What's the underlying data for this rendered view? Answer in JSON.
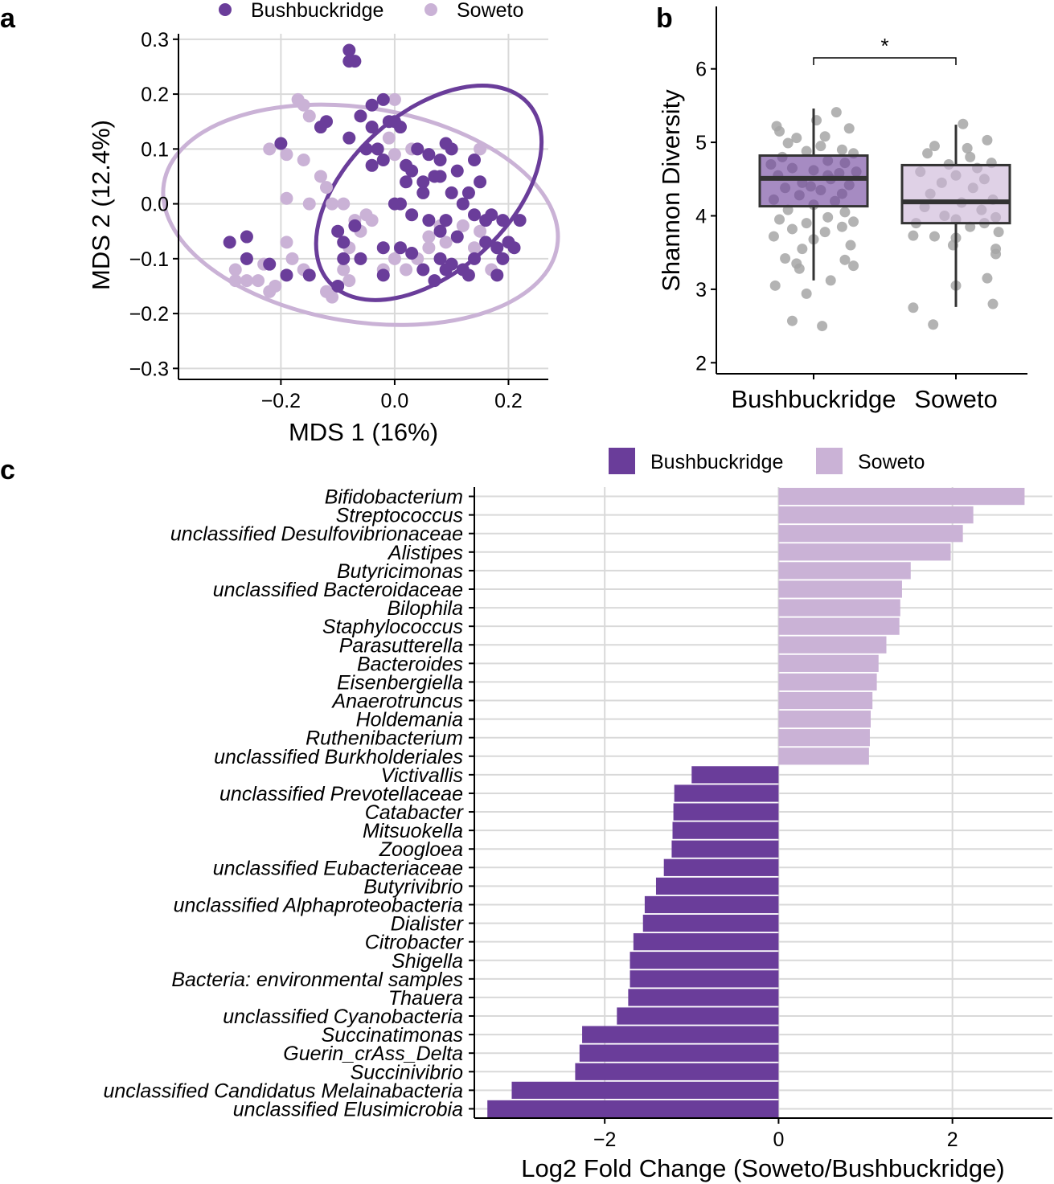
{
  "panels": {
    "a": {
      "letter": "a"
    },
    "b": {
      "letter": "b"
    },
    "c": {
      "letter": "c"
    }
  },
  "colors": {
    "bushbuckridge": "#6a3d9a",
    "soweto": "#cab2d6",
    "grid": "#d9d9d9",
    "jitter": "#a6a6a6",
    "axis": "#000000"
  },
  "chart_data": [
    {
      "id": "a",
      "type": "scatter",
      "title": "",
      "xlabel": "MDS 1 (16%)",
      "ylabel": "MDS 2 (12.4%)",
      "xlim": [
        -0.38,
        0.27
      ],
      "ylim": [
        -0.32,
        0.31
      ],
      "xticks": [
        -0.2,
        0.0,
        0.2
      ],
      "xtick_labels": [
        "−0.2",
        "0.0",
        "0.2"
      ],
      "yticks": [
        -0.3,
        -0.2,
        -0.1,
        0.0,
        0.1,
        0.2,
        0.3
      ],
      "ytick_labels": [
        "−0.3",
        "−0.2",
        "−0.1",
        "0.0",
        "0.1",
        "0.2",
        "0.3"
      ],
      "grid": true,
      "legend": {
        "placement": "top",
        "entries": [
          "Bushbuckridge",
          "Soweto"
        ]
      },
      "ellipses": [
        {
          "series": "Soweto",
          "cx": -0.06,
          "cy": -0.02,
          "rx": 0.35,
          "ry": 0.195,
          "angle_deg": 9
        },
        {
          "series": "Bushbuckridge",
          "cx": 0.06,
          "cy": 0.02,
          "rx": 0.235,
          "ry": 0.145,
          "angle_deg": -42
        }
      ],
      "series": [
        {
          "name": "Soweto",
          "points": [
            [
              -0.17,
              0.19
            ],
            [
              -0.16,
              0.18
            ],
            [
              -0.15,
              0.16
            ],
            [
              -0.13,
              0.05
            ],
            [
              -0.12,
              0.03
            ],
            [
              -0.19,
              0.09
            ],
            [
              -0.22,
              0.1
            ],
            [
              -0.16,
              0.08
            ],
            [
              -0.19,
              0.01
            ],
            [
              -0.15,
              0.0
            ],
            [
              -0.11,
              0.0
            ],
            [
              -0.09,
              0.0
            ],
            [
              -0.07,
              -0.03
            ],
            [
              -0.04,
              -0.03
            ],
            [
              -0.06,
              -0.05
            ],
            [
              -0.08,
              -0.08
            ],
            [
              -0.19,
              -0.07
            ],
            [
              -0.18,
              -0.1
            ],
            [
              -0.23,
              -0.11
            ],
            [
              -0.28,
              -0.12
            ],
            [
              -0.26,
              -0.14
            ],
            [
              -0.28,
              -0.14
            ],
            [
              -0.24,
              -0.14
            ],
            [
              -0.22,
              -0.16
            ],
            [
              -0.21,
              -0.15
            ],
            [
              -0.12,
              -0.16
            ],
            [
              -0.11,
              -0.17
            ],
            [
              -0.08,
              -0.14
            ],
            [
              -0.09,
              -0.12
            ],
            [
              -0.02,
              -0.12
            ],
            [
              0.0,
              -0.1
            ],
            [
              0.02,
              -0.12
            ],
            [
              0.04,
              -0.1
            ],
            [
              0.06,
              -0.06
            ],
            [
              0.09,
              -0.07
            ],
            [
              0.12,
              -0.04
            ],
            [
              0.14,
              -0.08
            ],
            [
              0.15,
              -0.05
            ],
            [
              0.17,
              -0.12
            ],
            [
              0.03,
              0.1
            ],
            [
              0.0,
              0.19
            ],
            [
              -0.01,
              0.12
            ],
            [
              0.06,
              -0.08
            ],
            [
              0.0,
              0.09
            ],
            [
              -0.05,
              -0.02
            ],
            [
              0.15,
              0.1
            ],
            [
              -0.16,
              -0.12
            ],
            [
              0.08,
              -0.04
            ]
          ]
        },
        {
          "name": "Bushbuckridge",
          "points": [
            [
              -0.08,
              0.28
            ],
            [
              -0.07,
              0.26
            ],
            [
              -0.08,
              0.26
            ],
            [
              -0.04,
              0.18
            ],
            [
              -0.02,
              0.19
            ],
            [
              -0.01,
              0.15
            ],
            [
              0.0,
              0.15
            ],
            [
              0.01,
              0.14
            ],
            [
              -0.04,
              0.14
            ],
            [
              -0.06,
              0.16
            ],
            [
              -0.12,
              0.15
            ],
            [
              -0.13,
              0.14
            ],
            [
              -0.2,
              0.11
            ],
            [
              -0.08,
              0.12
            ],
            [
              -0.05,
              0.1
            ],
            [
              -0.03,
              0.1
            ],
            [
              -0.02,
              0.08
            ],
            [
              -0.04,
              0.07
            ],
            [
              0.04,
              0.1
            ],
            [
              0.06,
              0.09
            ],
            [
              0.08,
              0.08
            ],
            [
              0.09,
              0.11
            ],
            [
              0.1,
              0.1
            ],
            [
              0.11,
              0.06
            ],
            [
              0.07,
              0.05
            ],
            [
              0.05,
              0.04
            ],
            [
              0.03,
              0.06
            ],
            [
              0.02,
              0.04
            ],
            [
              0.05,
              0.02
            ],
            [
              0.08,
              0.05
            ],
            [
              0.14,
              0.08
            ],
            [
              0.15,
              0.04
            ],
            [
              0.13,
              0.02
            ],
            [
              0.12,
              0.0
            ],
            [
              0.01,
              0.0
            ],
            [
              0.03,
              -0.02
            ],
            [
              0.06,
              -0.03
            ],
            [
              0.08,
              -0.05
            ],
            [
              0.09,
              -0.03
            ],
            [
              0.11,
              -0.06
            ],
            [
              0.14,
              -0.02
            ],
            [
              0.16,
              -0.03
            ],
            [
              0.17,
              -0.02
            ],
            [
              0.19,
              -0.03
            ],
            [
              0.22,
              -0.03
            ],
            [
              0.2,
              -0.07
            ],
            [
              0.21,
              -0.08
            ],
            [
              0.18,
              -0.08
            ],
            [
              0.16,
              -0.07
            ],
            [
              0.14,
              -0.1
            ],
            [
              0.12,
              -0.12
            ],
            [
              0.1,
              -0.11
            ],
            [
              0.08,
              -0.1
            ],
            [
              0.05,
              -0.12
            ],
            [
              0.03,
              -0.09
            ],
            [
              0.01,
              -0.08
            ],
            [
              -0.02,
              -0.08
            ],
            [
              -0.1,
              -0.05
            ],
            [
              -0.07,
              -0.04
            ],
            [
              -0.09,
              -0.07
            ],
            [
              -0.09,
              -0.1
            ],
            [
              -0.06,
              -0.1
            ],
            [
              -0.02,
              -0.13
            ],
            [
              -0.1,
              -0.15
            ],
            [
              -0.22,
              -0.11
            ],
            [
              -0.19,
              -0.13
            ],
            [
              -0.15,
              -0.13
            ],
            [
              -0.26,
              -0.1
            ],
            [
              -0.29,
              -0.07
            ],
            [
              -0.26,
              -0.06
            ],
            [
              0.18,
              -0.13
            ],
            [
              0.19,
              -0.1
            ],
            [
              0.13,
              -0.13
            ],
            [
              0.09,
              -0.12
            ],
            [
              0.07,
              -0.14
            ],
            [
              0.02,
              0.07
            ],
            [
              0.0,
              0.0
            ],
            [
              0.1,
              0.02
            ]
          ]
        }
      ]
    },
    {
      "id": "b",
      "type": "box",
      "title": "",
      "xlabel": "",
      "ylabel": "Shannon Diversity",
      "ylim": [
        1.85,
        6.85
      ],
      "yticks": [
        2,
        3,
        4,
        5,
        6
      ],
      "ytick_labels": [
        "2",
        "3",
        "4",
        "5",
        "6"
      ],
      "grid": false,
      "categories": [
        "Bushbuckridge",
        "Soweto"
      ],
      "boxes": [
        {
          "name": "Bushbuckridge",
          "q1": 4.13,
          "median": 4.51,
          "q3": 4.82,
          "whisker_low": 3.12,
          "whisker_high": 5.46
        },
        {
          "name": "Soweto",
          "q1": 3.9,
          "median": 4.19,
          "q3": 4.69,
          "whisker_low": 2.76,
          "whisker_high": 5.24
        }
      ],
      "significance": {
        "label": "*",
        "between": [
          "Bushbuckridge",
          "Soweto"
        ],
        "y": 6.15
      },
      "jitter": [
        {
          "name": "Bushbuckridge",
          "points": [
            [
              -0.26,
              5.22
            ],
            [
              -0.24,
              5.15
            ],
            [
              -0.12,
              5.06
            ],
            [
              0.16,
              5.41
            ],
            [
              0.25,
              5.19
            ],
            [
              0.08,
              5.08
            ],
            [
              -0.18,
              4.99
            ],
            [
              0.05,
              4.95
            ],
            [
              0.2,
              4.9
            ],
            [
              0.28,
              4.85
            ],
            [
              -0.05,
              4.88
            ],
            [
              -0.22,
              4.8
            ],
            [
              0.1,
              4.75
            ],
            [
              0.22,
              4.72
            ],
            [
              -0.15,
              4.65
            ],
            [
              0.0,
              4.62
            ],
            [
              0.18,
              4.58
            ],
            [
              -0.25,
              4.55
            ],
            [
              0.12,
              4.5
            ],
            [
              -0.08,
              4.45
            ],
            [
              0.25,
              4.42
            ],
            [
              -0.2,
              4.38
            ],
            [
              0.05,
              4.35
            ],
            [
              0.2,
              4.3
            ],
            [
              -0.1,
              4.28
            ],
            [
              -0.28,
              4.22
            ],
            [
              0.15,
              4.2
            ],
            [
              0.0,
              4.15
            ],
            [
              -0.18,
              4.08
            ],
            [
              0.22,
              4.05
            ],
            [
              0.1,
              3.98
            ],
            [
              -0.24,
              3.95
            ],
            [
              0.28,
              3.92
            ],
            [
              -0.05,
              3.9
            ],
            [
              0.2,
              3.85
            ],
            [
              -0.15,
              3.82
            ],
            [
              0.08,
              3.78
            ],
            [
              -0.28,
              3.72
            ],
            [
              0.0,
              3.68
            ],
            [
              0.26,
              3.6
            ],
            [
              -0.08,
              3.55
            ],
            [
              -0.2,
              3.42
            ],
            [
              0.22,
              3.4
            ],
            [
              -0.12,
              3.35
            ],
            [
              0.28,
              3.32
            ],
            [
              -0.1,
              3.28
            ],
            [
              0.12,
              3.12
            ],
            [
              -0.27,
              3.05
            ],
            [
              -0.05,
              2.94
            ],
            [
              -0.15,
              2.57
            ],
            [
              0.06,
              2.5
            ],
            [
              0.02,
              5.3
            ],
            [
              -0.3,
              4.7
            ],
            [
              0.3,
              4.6
            ],
            [
              -0.02,
              4.4
            ],
            [
              0.1,
              4.55
            ]
          ]
        },
        {
          "name": "Soweto",
          "points": [
            [
              0.05,
              5.25
            ],
            [
              0.22,
              5.03
            ],
            [
              -0.15,
              4.95
            ],
            [
              0.08,
              4.92
            ],
            [
              -0.2,
              4.85
            ],
            [
              0.1,
              4.8
            ],
            [
              0.25,
              4.72
            ],
            [
              -0.05,
              4.7
            ],
            [
              0.15,
              4.65
            ],
            [
              -0.25,
              4.6
            ],
            [
              0.0,
              4.55
            ],
            [
              0.2,
              4.5
            ],
            [
              -0.1,
              4.45
            ],
            [
              0.12,
              4.38
            ],
            [
              -0.18,
              4.3
            ],
            [
              0.26,
              4.22
            ],
            [
              0.04,
              4.18
            ],
            [
              -0.22,
              4.12
            ],
            [
              0.18,
              4.08
            ],
            [
              -0.08,
              4.0
            ],
            [
              0.28,
              3.98
            ],
            [
              0.0,
              3.95
            ],
            [
              -0.28,
              3.9
            ],
            [
              0.1,
              3.85
            ],
            [
              0.3,
              3.78
            ],
            [
              -0.15,
              3.72
            ],
            [
              -0.3,
              3.73
            ],
            [
              0.0,
              3.7
            ],
            [
              0.28,
              3.55
            ],
            [
              -0.02,
              3.6
            ],
            [
              0.28,
              3.48
            ],
            [
              0.22,
              3.15
            ],
            [
              0.0,
              3.05
            ],
            [
              0.26,
              2.8
            ],
            [
              -0.3,
              2.75
            ],
            [
              -0.16,
              2.52
            ],
            [
              0.2,
              3.9
            ]
          ]
        }
      ]
    },
    {
      "id": "c",
      "type": "bar",
      "orientation": "horizontal",
      "title": "",
      "xlabel": "Log2 Fold Change (Soweto/Bushbuckridge)",
      "ylabel": "",
      "xlim": [
        -3.5,
        3.15
      ],
      "xticks": [
        -2,
        0,
        2
      ],
      "xtick_labels": [
        "−2",
        "0",
        "2"
      ],
      "grid": true,
      "legend": {
        "placement": "top",
        "entries": [
          "Bushbuckridge",
          "Soweto"
        ]
      },
      "categories": [
        "Bifidobacterium",
        "Streptococcus",
        "unclassified Desulfovibrionaceae",
        "Alistipes",
        "Butyricimonas",
        "unclassified Bacteroidaceae",
        "Bilophila",
        "Staphylococcus",
        "Parasutterella",
        "Bacteroides",
        "Eisenbergiella",
        "Anaerotruncus",
        "Holdemania",
        "Ruthenibacterium",
        "unclassified Burkholderiales",
        "Victivallis",
        "unclassified Prevotellaceae",
        "Catabacter",
        "Mitsuokella",
        "Zoogloea",
        "unclassified Eubacteriaceae",
        "Butyrivibrio",
        "unclassified Alphaproteobacteria",
        "Dialister",
        "Citrobacter",
        "Shigella",
        "Bacteria: environmental samples",
        "Thauera",
        "unclassified Cyanobacteria",
        "Succinatimonas",
        "Guerin_crAss_Delta",
        "Succinivibrio",
        "unclassified Candidatus Melainabacteria",
        "unclassified Elusimicrobia"
      ],
      "values": [
        2.83,
        2.24,
        2.12,
        1.98,
        1.52,
        1.42,
        1.4,
        1.39,
        1.24,
        1.15,
        1.13,
        1.08,
        1.06,
        1.05,
        1.04,
        -1.0,
        -1.2,
        -1.21,
        -1.22,
        -1.23,
        -1.32,
        -1.41,
        -1.54,
        -1.56,
        -1.67,
        -1.71,
        -1.71,
        -1.73,
        -1.86,
        -2.26,
        -2.29,
        -2.34,
        -3.07,
        -3.35
      ]
    }
  ]
}
